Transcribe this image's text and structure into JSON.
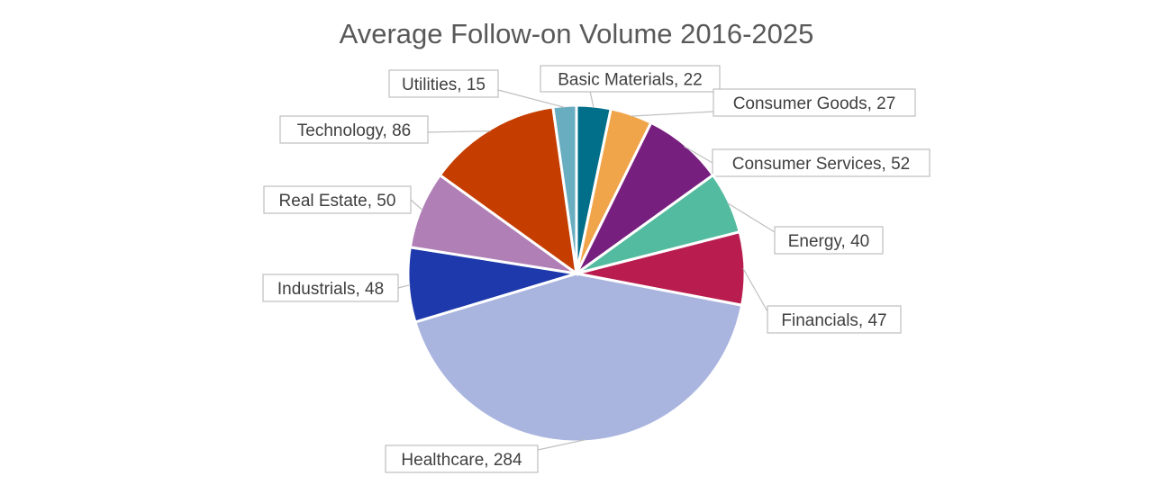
{
  "chart_data": {
    "type": "pie",
    "title": "Average Follow-on Volume 2016-2025",
    "start_angle": "12 o'clock",
    "direction": "clockwise",
    "legend": "none",
    "data_labels": "category, value",
    "slices": [
      {
        "label": "Basic Materials",
        "value": 22,
        "color": "#016f89"
      },
      {
        "label": "Consumer Goods",
        "value": 27,
        "color": "#f1a54a"
      },
      {
        "label": "Consumer Services",
        "value": 52,
        "color": "#771f7f"
      },
      {
        "label": "Energy",
        "value": 40,
        "color": "#53bb9f"
      },
      {
        "label": "Financials",
        "value": 47,
        "color": "#b91d4f"
      },
      {
        "label": "Healthcare",
        "value": 284,
        "color": "#aab5df"
      },
      {
        "label": "Industrials",
        "value": 48,
        "color": "#1d39ab"
      },
      {
        "label": "Real Estate",
        "value": 50,
        "color": "#b07fb6"
      },
      {
        "label": "Technology",
        "value": 86,
        "color": "#c53e00"
      },
      {
        "label": "Utilities",
        "value": 15,
        "color": "#69adc0"
      }
    ]
  }
}
